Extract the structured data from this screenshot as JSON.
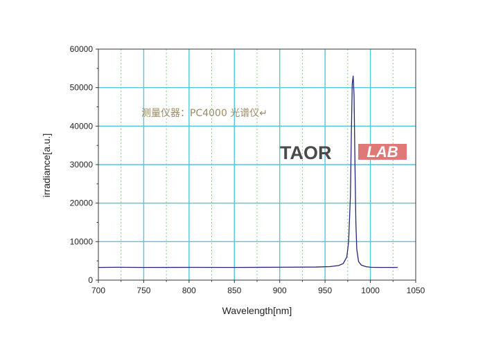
{
  "chart_data": {
    "type": "line",
    "title": "",
    "xlabel": "Wavelength[nm]",
    "ylabel": "irradiance[a.u.]",
    "xlim": [
      700,
      1050
    ],
    "ylim": [
      0,
      60000
    ],
    "x_ticks": [
      700,
      750,
      800,
      850,
      900,
      950,
      1000,
      1050
    ],
    "y_ticks": [
      0,
      10000,
      20000,
      30000,
      40000,
      50000,
      60000
    ],
    "grid": true,
    "annotation": "测量仪器：PC4000 光谱仪↵",
    "watermark": "TAORLAB",
    "series": [
      {
        "color": "#23237a",
        "x": [
          700,
          720,
          750,
          800,
          850,
          900,
          940,
          955,
          965,
          970,
          974,
          976,
          978,
          979,
          980,
          981,
          982,
          983,
          984,
          985,
          987,
          990,
          995,
          1000,
          1010,
          1020,
          1030
        ],
        "y": [
          3300,
          3350,
          3300,
          3320,
          3300,
          3350,
          3400,
          3500,
          3800,
          4300,
          6000,
          10000,
          22000,
          38000,
          51000,
          53000,
          48000,
          30000,
          15000,
          8000,
          4800,
          3900,
          3500,
          3350,
          3300,
          3300,
          3300
        ]
      }
    ]
  }
}
